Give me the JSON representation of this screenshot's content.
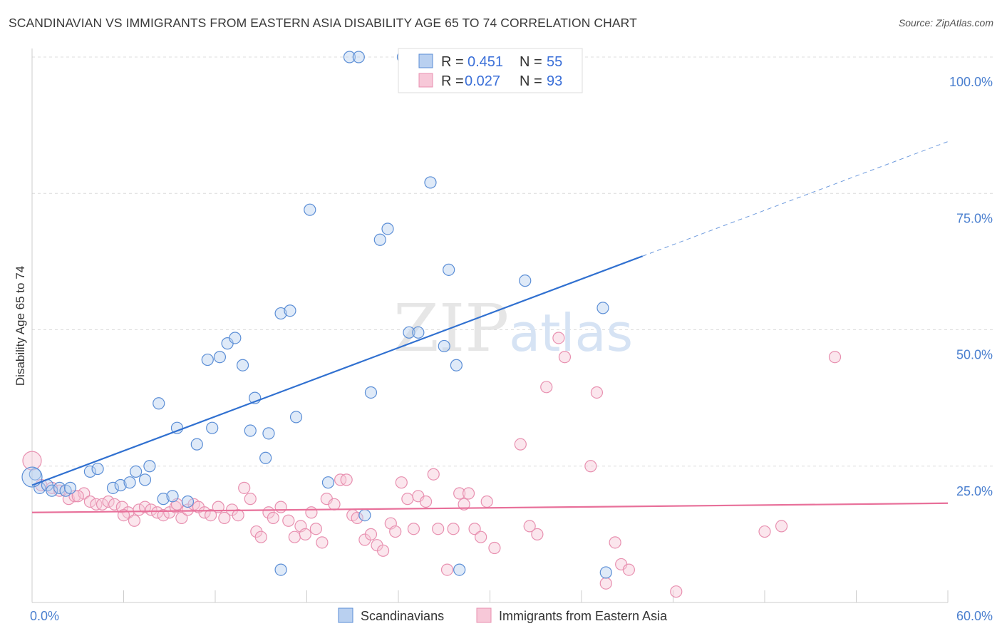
{
  "title": "SCANDINAVIAN VS IMMIGRANTS FROM EASTERN ASIA DISABILITY AGE 65 TO 74 CORRELATION CHART",
  "source": "Source: ZipAtlas.com",
  "watermark": "ZIPatlas",
  "colors": {
    "blue": "#5b8ed6",
    "blue_fill": "#b9d0f0",
    "blue_line": "#3070d0",
    "pink": "#e890b0",
    "pink_fill": "#f7c8d8",
    "pink_line": "#e8709a",
    "tick_text": "#4a7fcf"
  },
  "legend": {
    "r_label": "R =",
    "n_label": "N =",
    "rows": [
      {
        "r": "0.451",
        "n": "55"
      },
      {
        "r": "0.027",
        "n": "93"
      }
    ]
  },
  "bottom_legend": [
    "Scandinavians",
    "Immigrants from Eastern Asia"
  ],
  "chart_data": {
    "type": "scatter",
    "title": "SCANDINAVIAN VS IMMIGRANTS FROM EASTERN ASIA DISABILITY AGE 65 TO 74 CORRELATION CHART",
    "ylabel": "Disability Age 65 to 74",
    "xlabel": "",
    "xlim": [
      0,
      60
    ],
    "ylim": [
      0,
      100
    ],
    "x_tick_labels": [
      "0.0%",
      "60.0%"
    ],
    "y_tick_labels": [
      "100.0%",
      "75.0%",
      "50.0%",
      "25.0%"
    ],
    "y_ticks": [
      100,
      75,
      50,
      25
    ],
    "grid": true,
    "legend_placement": "top-center",
    "series": [
      {
        "name": "Scandinavians",
        "r": 0.451,
        "n": 55,
        "trend": {
          "x0": 0,
          "y0": 21.5,
          "x1": 40,
          "y1": 63.5,
          "dash_to_x": 60
        },
        "points": [
          [
            0.2,
            23.5
          ],
          [
            0.5,
            21
          ],
          [
            1.0,
            21.5
          ],
          [
            1.3,
            20.5
          ],
          [
            1.8,
            21
          ],
          [
            2.2,
            20.5
          ],
          [
            2.5,
            21
          ],
          [
            3.8,
            24
          ],
          [
            4.3,
            24.5
          ],
          [
            5.3,
            21
          ],
          [
            5.8,
            21.5
          ],
          [
            6.4,
            22
          ],
          [
            6.8,
            24
          ],
          [
            7.4,
            22.5
          ],
          [
            7.7,
            25
          ],
          [
            8.3,
            36.5
          ],
          [
            8.6,
            19
          ],
          [
            9.2,
            19.5
          ],
          [
            9.5,
            32
          ],
          [
            10.2,
            18.5
          ],
          [
            10.8,
            29
          ],
          [
            11.5,
            44.5
          ],
          [
            11.8,
            32
          ],
          [
            12.3,
            45
          ],
          [
            12.8,
            47.5
          ],
          [
            13.3,
            48.5
          ],
          [
            13.8,
            43.5
          ],
          [
            14.3,
            31.5
          ],
          [
            14.6,
            37.5
          ],
          [
            15.3,
            26.5
          ],
          [
            15.5,
            31
          ],
          [
            16.3,
            53
          ],
          [
            16.9,
            53.5
          ],
          [
            17.3,
            34
          ],
          [
            18.2,
            72
          ],
          [
            19.4,
            22
          ],
          [
            20.8,
            100
          ],
          [
            21.4,
            100
          ],
          [
            21.8,
            16
          ],
          [
            22.2,
            38.5
          ],
          [
            22.8,
            66.5
          ],
          [
            23.3,
            68.5
          ],
          [
            24.3,
            100
          ],
          [
            24.7,
            49.5
          ],
          [
            25.3,
            49.5
          ],
          [
            26.1,
            77
          ],
          [
            27.0,
            47
          ],
          [
            27.3,
            61
          ],
          [
            27.8,
            43.5
          ],
          [
            28.0,
            6
          ],
          [
            32.3,
            59
          ],
          [
            37.4,
            54
          ],
          [
            37.6,
            5.5
          ],
          [
            16.3,
            6
          ],
          [
            0.0,
            23.0
          ]
        ]
      },
      {
        "name": "Immigrants from Eastern Asia",
        "r": 0.027,
        "n": 93,
        "trend": {
          "x0": 0,
          "y0": 16.5,
          "x1": 60,
          "y1": 18.2
        },
        "points": [
          [
            0.0,
            26
          ],
          [
            0.6,
            21.5
          ],
          [
            1.3,
            21
          ],
          [
            1.8,
            20.5
          ],
          [
            2.4,
            19
          ],
          [
            2.8,
            19.5
          ],
          [
            3.4,
            20
          ],
          [
            3.8,
            18.5
          ],
          [
            4.2,
            18
          ],
          [
            4.6,
            18
          ],
          [
            5.0,
            18.5
          ],
          [
            5.4,
            18
          ],
          [
            5.9,
            17.5
          ],
          [
            6.3,
            16.5
          ],
          [
            6.7,
            15
          ],
          [
            7.0,
            17
          ],
          [
            7.4,
            17.5
          ],
          [
            7.8,
            17
          ],
          [
            8.2,
            16.5
          ],
          [
            8.6,
            16
          ],
          [
            9.0,
            16.5
          ],
          [
            9.4,
            17.5
          ],
          [
            9.8,
            15.5
          ],
          [
            10.2,
            17
          ],
          [
            10.6,
            18
          ],
          [
            10.9,
            17.5
          ],
          [
            11.3,
            16.5
          ],
          [
            11.7,
            16
          ],
          [
            12.2,
            17.5
          ],
          [
            12.6,
            15.5
          ],
          [
            13.1,
            17
          ],
          [
            13.5,
            16
          ],
          [
            13.9,
            21
          ],
          [
            14.3,
            19
          ],
          [
            14.7,
            13
          ],
          [
            15.0,
            12
          ],
          [
            15.5,
            16.5
          ],
          [
            15.8,
            15.5
          ],
          [
            16.3,
            17.5
          ],
          [
            16.8,
            15
          ],
          [
            17.2,
            12
          ],
          [
            17.6,
            14
          ],
          [
            17.9,
            12.5
          ],
          [
            18.3,
            16.5
          ],
          [
            18.6,
            13.5
          ],
          [
            19.0,
            11
          ],
          [
            19.3,
            19
          ],
          [
            19.8,
            18
          ],
          [
            20.2,
            22.5
          ],
          [
            20.6,
            22.5
          ],
          [
            21.0,
            16
          ],
          [
            21.3,
            15.5
          ],
          [
            21.8,
            11.5
          ],
          [
            22.2,
            12.5
          ],
          [
            22.6,
            10.5
          ],
          [
            23.0,
            9.5
          ],
          [
            23.5,
            14.5
          ],
          [
            23.8,
            13
          ],
          [
            24.2,
            22
          ],
          [
            24.6,
            19
          ],
          [
            25.0,
            13.5
          ],
          [
            25.3,
            19.5
          ],
          [
            25.8,
            18.5
          ],
          [
            26.3,
            23.5
          ],
          [
            26.6,
            13.5
          ],
          [
            27.2,
            6
          ],
          [
            27.6,
            13.5
          ],
          [
            28.0,
            20
          ],
          [
            28.3,
            18
          ],
          [
            28.6,
            20
          ],
          [
            29.0,
            13.5
          ],
          [
            29.4,
            12
          ],
          [
            29.8,
            18.5
          ],
          [
            30.3,
            10
          ],
          [
            32.0,
            29
          ],
          [
            32.6,
            14
          ],
          [
            33.1,
            12.5
          ],
          [
            33.7,
            39.5
          ],
          [
            34.5,
            48.5
          ],
          [
            34.9,
            45
          ],
          [
            36.6,
            25
          ],
          [
            37.0,
            38.5
          ],
          [
            37.6,
            3.5
          ],
          [
            38.2,
            11
          ],
          [
            38.6,
            7
          ],
          [
            39.1,
            6
          ],
          [
            42.2,
            2
          ],
          [
            48.0,
            13
          ],
          [
            49.1,
            14
          ],
          [
            52.6,
            45
          ],
          [
            3.0,
            19.5
          ],
          [
            6.0,
            16
          ],
          [
            9.5,
            18
          ]
        ]
      }
    ]
  }
}
